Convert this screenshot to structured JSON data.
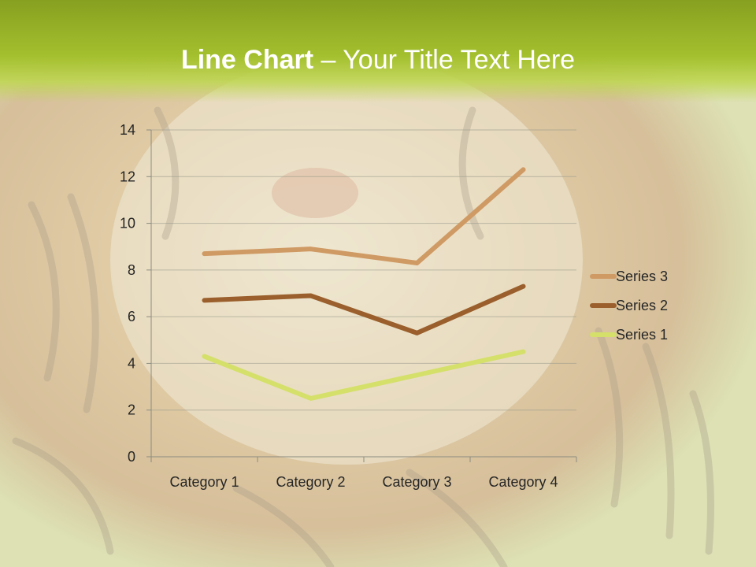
{
  "slide": {
    "title_bold": "Line Chart",
    "title_dash": " – ",
    "title_rest": "Your Title Text Here"
  },
  "background": {
    "description_icon": "tiger-photo",
    "title_band_color": "#9ab82a"
  },
  "chart_data": {
    "type": "line",
    "categories": [
      "Category 1",
      "Category 2",
      "Category 3",
      "Category 4"
    ],
    "series": [
      {
        "name": "Series 1",
        "values": [
          4.3,
          2.5,
          3.5,
          4.5
        ],
        "color": "#d4e06a"
      },
      {
        "name": "Series 2",
        "values": [
          6.7,
          6.9,
          5.3,
          7.3
        ],
        "color": "#9a5f2c"
      },
      {
        "name": "Series 3",
        "values": [
          8.7,
          8.9,
          8.3,
          12.3
        ],
        "color": "#cf9a64"
      }
    ],
    "ylim": [
      0,
      14
    ],
    "yticks": [
      "0",
      "2",
      "4",
      "6",
      "8",
      "10",
      "12",
      "14"
    ],
    "grid": true,
    "legend_position": "right",
    "legend_order": [
      "Series 3",
      "Series 2",
      "Series 1"
    ]
  }
}
